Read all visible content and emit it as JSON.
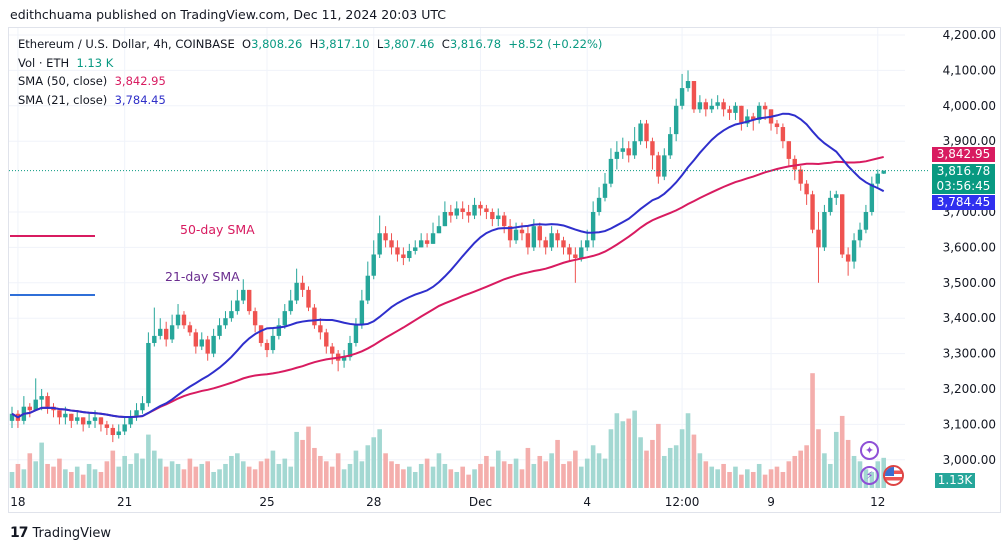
{
  "published": "edithchuama published on TradingView.com, Dec 11, 2024 20:03 UTC",
  "legend": {
    "symbol": "Ethereum / U.S. Dollar, 4h, COINBASE",
    "o_label": "O",
    "o": "3,808.26",
    "h_label": "H",
    "h": "3,817.10",
    "l_label": "L",
    "l": "3,807.46",
    "c_label": "C",
    "c": "3,816.78",
    "change": "+8.52 (+0.22%)",
    "vol_label": "Vol · ETH",
    "vol": "1.13 K",
    "sma50_label": "SMA (50, close)",
    "sma50": "3,842.95",
    "sma21_label": "SMA (21, close)",
    "sma21": "3,784.45"
  },
  "annotations": {
    "sma50": "50-day SMA",
    "sma21": "21-day SMA"
  },
  "badges": {
    "sma50": "3,842.95",
    "price": "3,816.78",
    "countdown": "03:56:45",
    "sma21": "3,784.45",
    "volume": "1.13K"
  },
  "footer": {
    "brand": "TradingView"
  },
  "colors": {
    "up": "#26a69a",
    "down": "#ef5350",
    "up_vol": "#a3d8d2",
    "down_vol": "#f4aeac",
    "sma50": "#d81b60",
    "sma21": "#2f2fcc",
    "price_badge": "#089981"
  },
  "chart_data": {
    "type": "candlestick",
    "ylim": [
      2950,
      4230
    ],
    "yticks": [
      "4,200.00",
      "4,100.00",
      "4,000.00",
      "3,900.00",
      "3,700.00",
      "3,600.00",
      "3,500.00",
      "3,400.00",
      "3,300.00",
      "3,200.00",
      "3,100.00",
      "3,000.00"
    ],
    "ytick_values": [
      4200,
      4100,
      4000,
      3900,
      3700,
      3600,
      3500,
      3400,
      3300,
      3200,
      3100,
      3000
    ],
    "xticks": [
      {
        "label": "18",
        "index": 1
      },
      {
        "label": "21",
        "index": 19
      },
      {
        "label": "25",
        "index": 43
      },
      {
        "label": "28",
        "index": 61
      },
      {
        "label": "Dec",
        "index": 79
      },
      {
        "label": "4",
        "index": 97
      },
      {
        "label": "12:00",
        "index": 113
      },
      {
        "label": "9",
        "index": 128
      },
      {
        "label": "12",
        "index": 146
      }
    ],
    "first_open": 3110,
    "close": [
      3130,
      3110,
      3150,
      3140,
      3170,
      3180,
      3150,
      3140,
      3120,
      3130,
      3110,
      3120,
      3100,
      3110,
      3120,
      3100,
      3090,
      3070,
      3080,
      3100,
      3120,
      3140,
      3160,
      3330,
      3350,
      3370,
      3340,
      3380,
      3410,
      3380,
      3360,
      3320,
      3340,
      3300,
      3350,
      3380,
      3400,
      3420,
      3450,
      3480,
      3420,
      3380,
      3330,
      3310,
      3350,
      3380,
      3420,
      3450,
      3500,
      3480,
      3430,
      3380,
      3360,
      3320,
      3300,
      3280,
      3290,
      3330,
      3380,
      3450,
      3520,
      3580,
      3640,
      3620,
      3600,
      3580,
      3570,
      3590,
      3600,
      3620,
      3610,
      3640,
      3660,
      3700,
      3690,
      3710,
      3700,
      3690,
      3720,
      3710,
      3700,
      3680,
      3690,
      3660,
      3620,
      3650,
      3640,
      3600,
      3660,
      3620,
      3600,
      3640,
      3620,
      3600,
      3580,
      3570,
      3600,
      3620,
      3700,
      3740,
      3780,
      3850,
      3870,
      3880,
      3860,
      3900,
      3950,
      3900,
      3860,
      3800,
      3860,
      3920,
      4000,
      4050,
      4070,
      3990,
      4010,
      3990,
      4000,
      4010,
      3990,
      3980,
      4000,
      3950,
      3970,
      3960,
      4000,
      3990,
      3950,
      3940,
      3900,
      3850,
      3820,
      3780,
      3750,
      3650,
      3600,
      3700,
      3740,
      3750,
      3580,
      3560,
      3620,
      3650,
      3700,
      3780,
      3808.26,
      3816.78
    ],
    "high": [
      3150,
      3140,
      3180,
      3160,
      3230,
      3200,
      3190,
      3160,
      3140,
      3150,
      3130,
      3140,
      3120,
      3130,
      3140,
      3120,
      3110,
      3100,
      3100,
      3120,
      3140,
      3160,
      3180,
      3360,
      3430,
      3400,
      3390,
      3410,
      3440,
      3420,
      3390,
      3370,
      3360,
      3350,
      3370,
      3400,
      3420,
      3450,
      3480,
      3510,
      3480,
      3430,
      3380,
      3340,
      3370,
      3400,
      3440,
      3480,
      3540,
      3520,
      3490,
      3440,
      3400,
      3370,
      3330,
      3310,
      3310,
      3350,
      3400,
      3480,
      3560,
      3620,
      3690,
      3660,
      3640,
      3620,
      3600,
      3610,
      3620,
      3640,
      3640,
      3670,
      3690,
      3730,
      3720,
      3730,
      3730,
      3720,
      3740,
      3730,
      3720,
      3710,
      3710,
      3700,
      3680,
      3670,
      3670,
      3660,
      3680,
      3670,
      3630,
      3660,
      3650,
      3630,
      3610,
      3600,
      3620,
      3650,
      3730,
      3770,
      3810,
      3880,
      3900,
      3910,
      3900,
      3940,
      3960,
      3960,
      3910,
      3870,
      3880,
      3940,
      4020,
      4090,
      4100,
      4070,
      4030,
      4020,
      4020,
      4030,
      4020,
      4000,
      4010,
      4000,
      3990,
      3980,
      4010,
      4010,
      3990,
      3960,
      3950,
      3900,
      3860,
      3830,
      3790,
      3760,
      3700,
      3720,
      3760,
      3760,
      3750,
      3600,
      3640,
      3670,
      3720,
      3800,
      3820,
      3817.1
    ],
    "low": [
      3090,
      3090,
      3100,
      3120,
      3140,
      3140,
      3130,
      3120,
      3100,
      3100,
      3090,
      3100,
      3080,
      3090,
      3090,
      3080,
      3070,
      3050,
      3060,
      3070,
      3090,
      3110,
      3130,
      3150,
      3320,
      3340,
      3320,
      3330,
      3370,
      3370,
      3350,
      3300,
      3310,
      3280,
      3290,
      3340,
      3370,
      3390,
      3410,
      3440,
      3410,
      3360,
      3320,
      3290,
      3300,
      3340,
      3370,
      3410,
      3440,
      3460,
      3420,
      3370,
      3340,
      3300,
      3270,
      3250,
      3260,
      3280,
      3320,
      3370,
      3440,
      3510,
      3570,
      3600,
      3580,
      3560,
      3550,
      3560,
      3580,
      3600,
      3600,
      3610,
      3640,
      3660,
      3670,
      3680,
      3680,
      3670,
      3680,
      3690,
      3680,
      3660,
      3660,
      3640,
      3600,
      3610,
      3620,
      3580,
      3590,
      3600,
      3580,
      3590,
      3600,
      3580,
      3560,
      3500,
      3560,
      3590,
      3600,
      3690,
      3730,
      3770,
      3820,
      3850,
      3840,
      3850,
      3890,
      3880,
      3820,
      3780,
      3790,
      3850,
      3900,
      3990,
      4040,
      3980,
      3980,
      3970,
      3980,
      3990,
      3970,
      3960,
      3960,
      3930,
      3940,
      3930,
      3950,
      3960,
      3930,
      3920,
      3880,
      3830,
      3790,
      3760,
      3720,
      3640,
      3500,
      3590,
      3690,
      3720,
      3570,
      3520,
      3540,
      3600,
      3640,
      3690,
      3770,
      3807.46
    ],
    "volume": [
      0.6,
      0.9,
      0.7,
      1.3,
      1.0,
      1.7,
      0.9,
      0.8,
      1.1,
      0.7,
      0.6,
      0.8,
      0.5,
      0.9,
      0.7,
      0.6,
      1.0,
      1.4,
      0.8,
      1.2,
      0.9,
      1.3,
      1.1,
      2.0,
      1.4,
      1.1,
      0.8,
      1.0,
      0.9,
      0.7,
      1.1,
      0.8,
      0.9,
      1.0,
      0.6,
      0.7,
      0.9,
      1.2,
      1.3,
      1.0,
      0.8,
      0.7,
      1.0,
      1.1,
      1.4,
      0.9,
      1.1,
      0.8,
      2.1,
      1.8,
      2.3,
      1.5,
      1.2,
      1.0,
      0.8,
      1.3,
      0.7,
      0.9,
      1.4,
      1.0,
      1.6,
      1.9,
      2.2,
      1.3,
      1.0,
      0.9,
      0.7,
      0.8,
      0.6,
      0.9,
      1.1,
      0.8,
      1.3,
      0.9,
      0.7,
      0.6,
      0.8,
      0.5,
      0.7,
      0.9,
      1.2,
      0.8,
      1.4,
      1.0,
      0.9,
      1.1,
      0.7,
      1.5,
      0.9,
      1.2,
      1.0,
      1.3,
      1.8,
      0.9,
      1.0,
      1.4,
      0.8,
      1.1,
      1.6,
      1.3,
      1.1,
      2.2,
      2.8,
      2.5,
      2.6,
      2.9,
      1.9,
      1.4,
      1.8,
      2.4,
      1.2,
      1.5,
      1.6,
      2.2,
      2.8,
      2.0,
      1.3,
      1.0,
      0.8,
      0.7,
      0.9,
      0.6,
      0.8,
      0.5,
      0.7,
      0.6,
      0.9,
      0.5,
      0.7,
      0.8,
      0.6,
      1.0,
      1.2,
      1.4,
      1.6,
      4.3,
      2.2,
      1.3,
      0.9,
      2.1,
      2.7,
      1.8,
      1.2,
      1.0,
      0.7,
      0.6,
      1.0,
      1.13
    ],
    "sma_periods": [
      21,
      50
    ]
  }
}
